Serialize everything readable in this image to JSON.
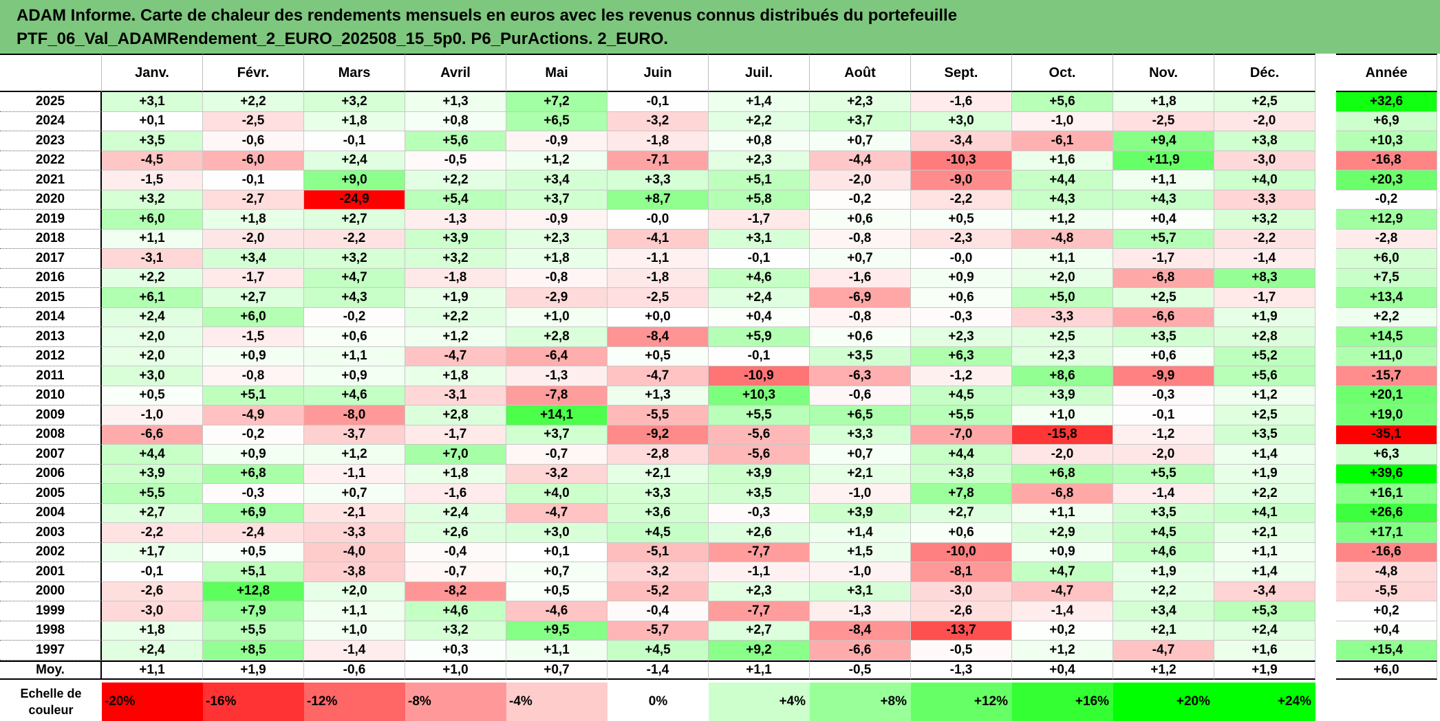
{
  "title_line1": "ADAM Informe. Carte de chaleur des rendements mensuels en euros avec les revenus connus distribués du portefeuille",
  "title_line2": "PTF_06_Val_ADAMRendement_2_EURO_202508_15_5p0. P6_PurActions. 2_EURO.",
  "chart_data": {
    "type": "heatmap",
    "columns": [
      "Janv.",
      "Févr.",
      "Mars",
      "Avril",
      "Mai",
      "Juin",
      "Juil.",
      "Août",
      "Sept.",
      "Oct.",
      "Nov.",
      "Déc."
    ],
    "year_column_label": "Année",
    "rows": [
      {
        "year": "2025",
        "months": [
          "+3,1",
          "+2,2",
          "+3,2",
          "+1,3",
          "+7,2",
          "-0,1",
          "+1,4",
          "+2,3",
          "-1,6",
          "+5,6",
          "+1,8",
          "+2,5"
        ],
        "annual": "+32,6"
      },
      {
        "year": "2024",
        "months": [
          "+0,1",
          "-2,5",
          "+1,8",
          "+0,8",
          "+6,5",
          "-3,2",
          "+2,2",
          "+3,7",
          "+3,0",
          "-1,0",
          "-2,5",
          "-2,0"
        ],
        "annual": "+6,9"
      },
      {
        "year": "2023",
        "months": [
          "+3,5",
          "-0,6",
          "-0,1",
          "+5,6",
          "-0,9",
          "-1,8",
          "+0,8",
          "+0,7",
          "-3,4",
          "-6,1",
          "+9,4",
          "+3,8"
        ],
        "annual": "+10,3"
      },
      {
        "year": "2022",
        "months": [
          "-4,5",
          "-6,0",
          "+2,4",
          "-0,5",
          "+1,2",
          "-7,1",
          "+2,3",
          "-4,4",
          "-10,3",
          "+1,6",
          "+11,9",
          "-3,0"
        ],
        "annual": "-16,8"
      },
      {
        "year": "2021",
        "months": [
          "-1,5",
          "-0,1",
          "+9,0",
          "+2,2",
          "+3,4",
          "+3,3",
          "+5,1",
          "-2,0",
          "-9,0",
          "+4,4",
          "+1,1",
          "+4,0"
        ],
        "annual": "+20,3"
      },
      {
        "year": "2020",
        "months": [
          "+3,2",
          "-2,7",
          "-24,9",
          "+5,4",
          "+3,7",
          "+8,7",
          "+5,8",
          "-0,2",
          "-2,2",
          "+4,3",
          "+4,3",
          "-3,3"
        ],
        "annual": "-0,2"
      },
      {
        "year": "2019",
        "months": [
          "+6,0",
          "+1,8",
          "+2,7",
          "-1,3",
          "-0,9",
          "-0,0",
          "-1,7",
          "+0,6",
          "+0,5",
          "+1,2",
          "+0,4",
          "+3,2"
        ],
        "annual": "+12,9"
      },
      {
        "year": "2018",
        "months": [
          "+1,1",
          "-2,0",
          "-2,2",
          "+3,9",
          "+2,3",
          "-4,1",
          "+3,1",
          "-0,8",
          "-2,3",
          "-4,8",
          "+5,7",
          "-2,2"
        ],
        "annual": "-2,8"
      },
      {
        "year": "2017",
        "months": [
          "-3,1",
          "+3,4",
          "+3,2",
          "+3,2",
          "+1,8",
          "-1,1",
          "-0,1",
          "+0,7",
          "-0,0",
          "+1,1",
          "-1,7",
          "-1,4"
        ],
        "annual": "+6,0"
      },
      {
        "year": "2016",
        "months": [
          "+2,2",
          "-1,7",
          "+4,7",
          "-1,8",
          "-0,8",
          "-1,8",
          "+4,6",
          "-1,6",
          "+0,9",
          "+2,0",
          "-6,8",
          "+8,3"
        ],
        "annual": "+7,5"
      },
      {
        "year": "2015",
        "months": [
          "+6,1",
          "+2,7",
          "+4,3",
          "+1,9",
          "-2,9",
          "-2,5",
          "+2,4",
          "-6,9",
          "+0,6",
          "+5,0",
          "+2,5",
          "-1,7"
        ],
        "annual": "+13,4"
      },
      {
        "year": "2014",
        "months": [
          "+2,4",
          "+6,0",
          "-0,2",
          "+2,2",
          "+1,0",
          "+0,0",
          "+0,4",
          "-0,8",
          "-0,3",
          "-3,3",
          "-6,6",
          "+1,9"
        ],
        "annual": "+2,2"
      },
      {
        "year": "2013",
        "months": [
          "+2,0",
          "-1,5",
          "+0,6",
          "+1,2",
          "+2,8",
          "-8,4",
          "+5,9",
          "+0,6",
          "+2,3",
          "+2,5",
          "+3,5",
          "+2,8"
        ],
        "annual": "+14,5"
      },
      {
        "year": "2012",
        "months": [
          "+2,0",
          "+0,9",
          "+1,1",
          "-4,7",
          "-6,4",
          "+0,5",
          "-0,1",
          "+3,5",
          "+6,3",
          "+2,3",
          "+0,6",
          "+5,2"
        ],
        "annual": "+11,0"
      },
      {
        "year": "2011",
        "months": [
          "+3,0",
          "-0,8",
          "+0,9",
          "+1,8",
          "-1,3",
          "-4,7",
          "-10,9",
          "-6,3",
          "-1,2",
          "+8,6",
          "-9,9",
          "+5,6"
        ],
        "annual": "-15,7"
      },
      {
        "year": "2010",
        "months": [
          "+0,5",
          "+5,1",
          "+4,6",
          "-3,1",
          "-7,8",
          "+1,3",
          "+10,3",
          "-0,6",
          "+4,5",
          "+3,9",
          "-0,3",
          "+1,2"
        ],
        "annual": "+20,1"
      },
      {
        "year": "2009",
        "months": [
          "-1,0",
          "-4,9",
          "-8,0",
          "+2,8",
          "+14,1",
          "-5,5",
          "+5,5",
          "+6,5",
          "+5,5",
          "+1,0",
          "-0,1",
          "+2,5"
        ],
        "annual": "+19,0"
      },
      {
        "year": "2008",
        "months": [
          "-6,6",
          "-0,2",
          "-3,7",
          "-1,7",
          "+3,7",
          "-9,2",
          "-5,6",
          "+3,3",
          "-7,0",
          "-15,8",
          "-1,2",
          "+3,5"
        ],
        "annual": "-35,1"
      },
      {
        "year": "2007",
        "months": [
          "+4,4",
          "+0,9",
          "+1,2",
          "+7,0",
          "-0,7",
          "-2,8",
          "-5,6",
          "+0,7",
          "+4,4",
          "-2,0",
          "-2,0",
          "+1,4"
        ],
        "annual": "+6,3"
      },
      {
        "year": "2006",
        "months": [
          "+3,9",
          "+6,8",
          "-1,1",
          "+1,8",
          "-3,2",
          "+2,1",
          "+3,9",
          "+2,1",
          "+3,8",
          "+6,8",
          "+5,5",
          "+1,9"
        ],
        "annual": "+39,6"
      },
      {
        "year": "2005",
        "months": [
          "+5,5",
          "-0,3",
          "+0,7",
          "-1,6",
          "+4,0",
          "+3,3",
          "+3,5",
          "-1,0",
          "+7,8",
          "-6,8",
          "-1,4",
          "+2,2"
        ],
        "annual": "+16,1"
      },
      {
        "year": "2004",
        "months": [
          "+2,7",
          "+6,9",
          "-2,1",
          "+2,4",
          "-4,7",
          "+3,6",
          "-0,3",
          "+3,9",
          "+2,7",
          "+1,1",
          "+3,5",
          "+4,1"
        ],
        "annual": "+26,6"
      },
      {
        "year": "2003",
        "months": [
          "-2,2",
          "-2,4",
          "-3,3",
          "+2,6",
          "+3,0",
          "+4,5",
          "+2,6",
          "+1,4",
          "+0,6",
          "+2,9",
          "+4,5",
          "+2,1"
        ],
        "annual": "+17,1"
      },
      {
        "year": "2002",
        "months": [
          "+1,7",
          "+0,5",
          "-4,0",
          "-0,4",
          "+0,1",
          "-5,1",
          "-7,7",
          "+1,5",
          "-10,0",
          "+0,9",
          "+4,6",
          "+1,1"
        ],
        "annual": "-16,6"
      },
      {
        "year": "2001",
        "months": [
          "-0,1",
          "+5,1",
          "-3,8",
          "-0,7",
          "+0,7",
          "-3,2",
          "-1,1",
          "-1,0",
          "-8,1",
          "+4,7",
          "+1,9",
          "+1,4"
        ],
        "annual": "-4,8"
      },
      {
        "year": "2000",
        "months": [
          "-2,6",
          "+12,8",
          "+2,0",
          "-8,2",
          "+0,5",
          "-5,2",
          "+2,3",
          "+3,1",
          "-3,0",
          "-4,7",
          "+2,2",
          "-3,4"
        ],
        "annual": "-5,5"
      },
      {
        "year": "1999",
        "months": [
          "-3,0",
          "+7,9",
          "+1,1",
          "+4,6",
          "-4,6",
          "-0,4",
          "-7,7",
          "-1,3",
          "-2,6",
          "-1,4",
          "+3,4",
          "+5,3"
        ],
        "annual": "+0,2"
      },
      {
        "year": "1998",
        "months": [
          "+1,8",
          "+5,5",
          "+1,0",
          "+3,2",
          "+9,5",
          "-5,7",
          "+2,7",
          "-8,4",
          "-13,7",
          "+0,2",
          "+2,1",
          "+2,4"
        ],
        "annual": "+0,4"
      },
      {
        "year": "1997",
        "months": [
          "+2,4",
          "+8,5",
          "-1,4",
          "+0,3",
          "+1,1",
          "+4,5",
          "+9,2",
          "-6,6",
          "-0,5",
          "+1,2",
          "-4,7",
          "+1,6"
        ],
        "annual": "+15,4"
      }
    ],
    "average_row": {
      "label": "Moy.",
      "months": [
        "+1,1",
        "+1,9",
        "-0,6",
        "+1,0",
        "+0,7",
        "-1,4",
        "+1,1",
        "-0,5",
        "-1,3",
        "+0,4",
        "+1,2",
        "+1,9"
      ],
      "annual": "+6,0"
    },
    "color_scale": {
      "label_line1": "Echelle de",
      "label_line2": "couleur",
      "stops": [
        "-20%",
        "-16%",
        "-12%",
        "-8%",
        "-4%",
        "0%",
        "+4%",
        "+8%",
        "+12%",
        "+16%",
        "+20%",
        "+24%"
      ],
      "stop_values": [
        -20,
        -16,
        -12,
        -8,
        -4,
        0,
        4,
        8,
        12,
        16,
        20,
        24
      ]
    },
    "colors": {
      "negative_max": "#ff0000",
      "positive_max": "#00ff00",
      "neutral": "#ffffff"
    }
  }
}
